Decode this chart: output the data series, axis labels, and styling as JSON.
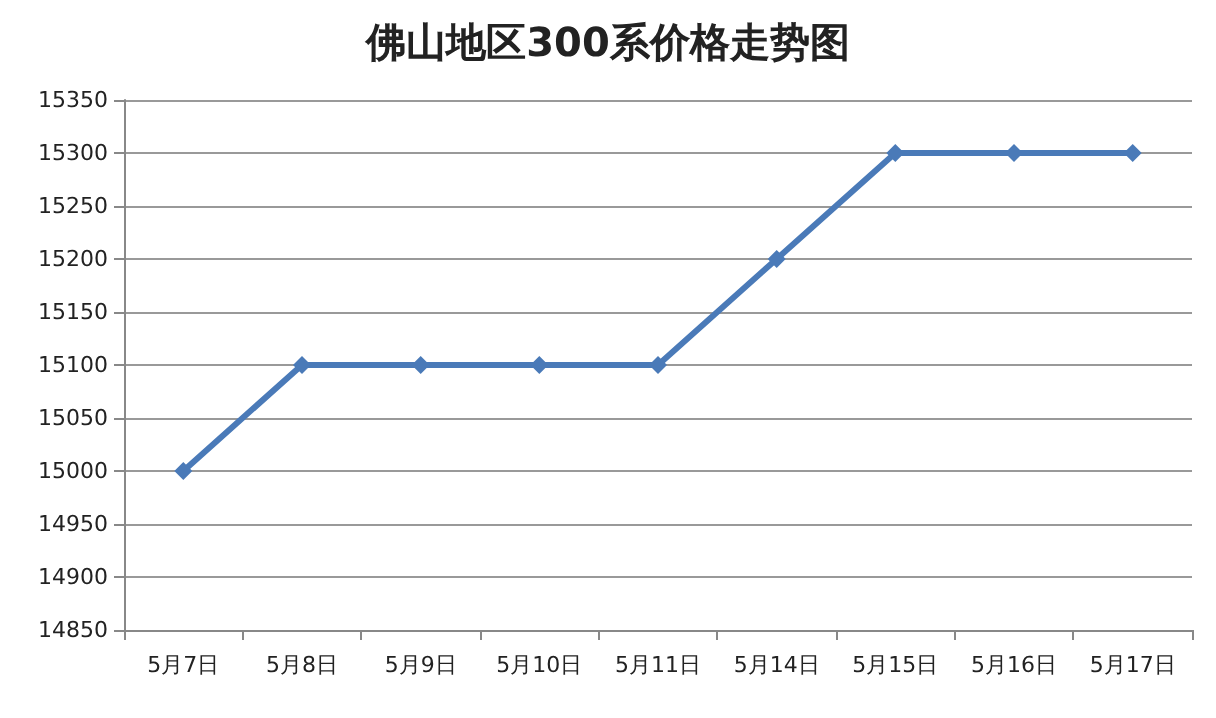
{
  "chart_data": {
    "type": "line",
    "title": "佛山地区300系价格走势图",
    "categories": [
      "5月7日",
      "5月8日",
      "5月9日",
      "5月10日",
      "5月11日",
      "5月14日",
      "5月15日",
      "5月16日",
      "5月17日"
    ],
    "series": [
      {
        "color": "#4a7ab8",
        "values": [
          15000,
          15100,
          15100,
          15100,
          15100,
          15200,
          15300,
          15300,
          15300
        ]
      }
    ],
    "ylim": [
      14850,
      15350
    ],
    "yticks": [
      14850,
      14900,
      14950,
      15000,
      15050,
      15100,
      15150,
      15200,
      15250,
      15300,
      15350
    ],
    "grid": "y",
    "marker": "diamond",
    "line_style": "solid"
  }
}
